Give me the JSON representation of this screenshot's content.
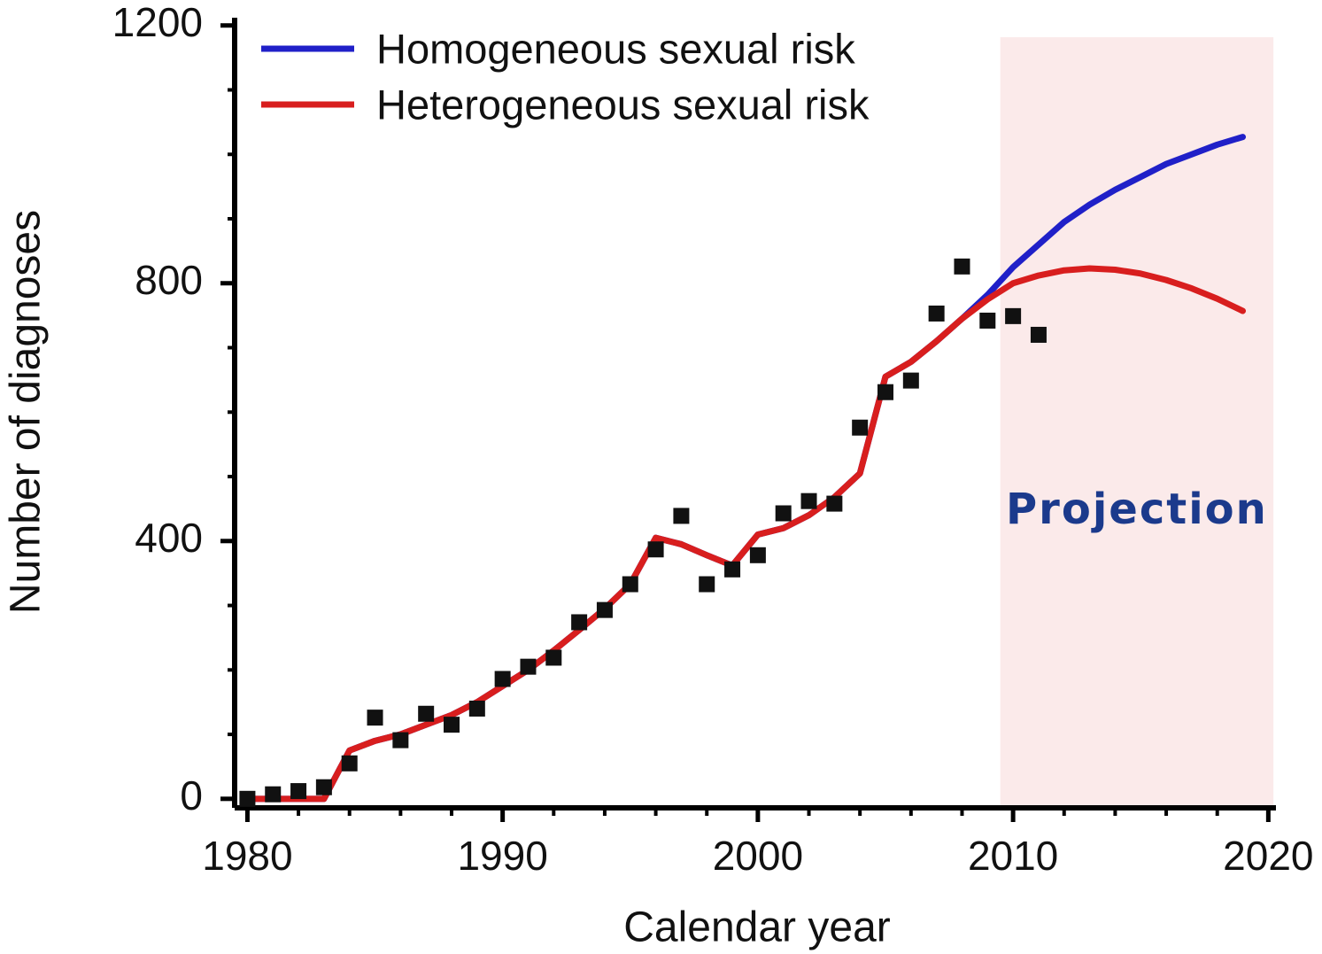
{
  "chart_data": {
    "type": "line",
    "x_label": "Calendar year",
    "y_label": "Number of diagnoses",
    "xlim": [
      1979.5,
      2020.3
    ],
    "ylim": [
      -14,
      1212
    ],
    "xticks": [
      1980,
      1990,
      2000,
      2010,
      2020
    ],
    "yticks": [
      0,
      400,
      800,
      1200
    ],
    "x_minor_ticks": [
      1982,
      1984,
      1986,
      1988,
      1992,
      1994,
      1996,
      1998,
      2002,
      2004,
      2006,
      2008,
      2012,
      2014,
      2016,
      2018
    ],
    "y_minor_ticks": [
      100,
      200,
      300,
      500,
      600,
      700,
      900,
      1000,
      1100
    ],
    "projection": {
      "label": "Projection",
      "xlim": [
        2009.5,
        2020.2
      ],
      "color": "#fbeaea"
    },
    "x": [
      1980,
      1981,
      1982,
      1983,
      1984,
      1985,
      1986,
      1987,
      1988,
      1989,
      1990,
      1991,
      1992,
      1993,
      1994,
      1995,
      1996,
      1997,
      1998,
      1999,
      2000,
      2001,
      2002,
      2003,
      2004,
      2005,
      2006,
      2007,
      2008,
      2009,
      2010,
      2011,
      2012,
      2013,
      2014,
      2015,
      2016,
      2017,
      2018,
      2019
    ],
    "series": [
      {
        "name": "Homogeneous sexual risk",
        "color": "#2020c8",
        "values": [
          0,
          0,
          0,
          0,
          75,
          90,
          100,
          115,
          130,
          150,
          175,
          200,
          230,
          262,
          295,
          333,
          405,
          395,
          378,
          362,
          410,
          420,
          440,
          468,
          505,
          655,
          678,
          710,
          745,
          782,
          825,
          860,
          895,
          922,
          945,
          965,
          985,
          1000,
          1015,
          1027
        ]
      },
      {
        "name": "Heterogeneous sexual risk",
        "color": "#d81e1e",
        "values": [
          0,
          0,
          0,
          0,
          75,
          90,
          100,
          115,
          130,
          150,
          175,
          200,
          230,
          262,
          295,
          333,
          405,
          395,
          378,
          362,
          410,
          420,
          440,
          468,
          505,
          655,
          678,
          710,
          745,
          775,
          800,
          812,
          820,
          823,
          821,
          815,
          805,
          792,
          776,
          757
        ]
      }
    ],
    "observed": {
      "type": "scatter",
      "color": "#111111",
      "x": [
        1980,
        1981,
        1982,
        1983,
        1984,
        1985,
        1986,
        1987,
        1988,
        1989,
        1990,
        1991,
        1992,
        1993,
        1994,
        1995,
        1996,
        1997,
        1998,
        1999,
        2000,
        2001,
        2002,
        2003,
        2004,
        2005,
        2006,
        2007,
        2008,
        2009,
        2010,
        2011
      ],
      "values": [
        0,
        7,
        12,
        18,
        55,
        126,
        91,
        132,
        115,
        140,
        186,
        205,
        219,
        274,
        293,
        333,
        387,
        439,
        333,
        356,
        378,
        443,
        462,
        458,
        576,
        631,
        649,
        753,
        826,
        742,
        749,
        720
      ]
    }
  }
}
